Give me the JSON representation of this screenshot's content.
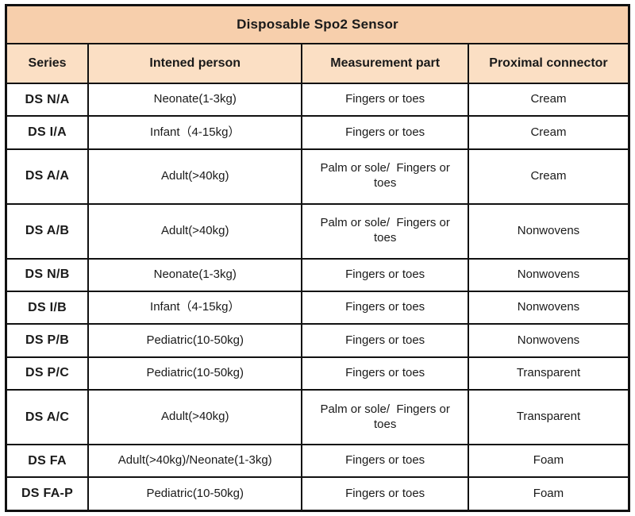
{
  "table": {
    "title": "Disposable Spo2 Sensor",
    "columns": {
      "series": "Series",
      "person": "Intened person",
      "part": "Measurement part",
      "connector": "Proximal connector"
    },
    "rows": [
      {
        "series": "DS N/A",
        "person": "Neonate(1-3kg)",
        "part": "Fingers or toes",
        "connector": "Cream"
      },
      {
        "series": "DS I/A",
        "person": "Infant（4-15kg）",
        "part": "Fingers or toes",
        "connector": "Cream"
      },
      {
        "series": "DS A/A",
        "person": "Adult(>40kg)",
        "part": "Palm or sole/  Fingers or toes",
        "connector": "Cream"
      },
      {
        "series": "DS A/B",
        "person": "Adult(>40kg)",
        "part": "Palm or sole/  Fingers or toes",
        "connector": "Nonwovens"
      },
      {
        "series": "DS N/B",
        "person": "Neonate(1-3kg)",
        "part": "Fingers or toes",
        "connector": "Nonwovens"
      },
      {
        "series": "DS I/B",
        "person": "Infant（4-15kg）",
        "part": "Fingers or toes",
        "connector": "Nonwovens"
      },
      {
        "series": "DS P/B",
        "person": "Pediatric(10-50kg)",
        "part": "Fingers or toes",
        "connector": "Nonwovens"
      },
      {
        "series": "DS P/C",
        "person": "Pediatric(10-50kg)",
        "part": "Fingers or toes",
        "connector": "Transparent"
      },
      {
        "series": "DS A/C",
        "person": "Adult(>40kg)",
        "part": "Palm or sole/  Fingers or toes",
        "connector": "Transparent"
      },
      {
        "series": "DS FA",
        "person": "Adult(>40kg)/Neonate(1-3kg)",
        "part": "Fingers or toes",
        "connector": "Foam"
      },
      {
        "series": "DS FA-P",
        "person": "Pediatric(10-50kg)",
        "part": "Fingers or toes",
        "connector": "Foam"
      }
    ],
    "colors": {
      "title_bg": "#f7cfac",
      "header_bg": "#fbdfc4",
      "border": "#111111",
      "row_bg": "#ffffff",
      "text": "#1a1a1a"
    }
  }
}
